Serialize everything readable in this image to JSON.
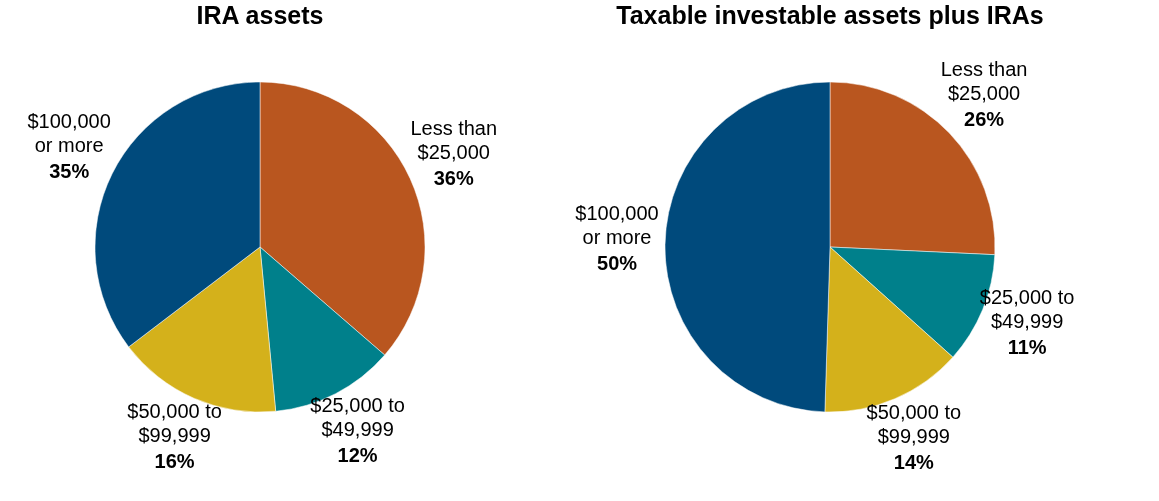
{
  "chart_data": [
    {
      "type": "pie",
      "title": "IRA assets",
      "categories": [
        "Less than $25,000",
        "$25,000 to $49,999",
        "$50,000 to $99,999",
        "$100,000 or more"
      ],
      "values": [
        36,
        12,
        16,
        35
      ],
      "value_labels": [
        "36%",
        "12%",
        "16%",
        "35%"
      ],
      "colors": [
        "#b9561f",
        "#00808b",
        "#d4b11b",
        "#004a7c"
      ],
      "legend": false
    },
    {
      "type": "pie",
      "title": "Taxable investable assets plus IRAs",
      "categories": [
        "Less than $25,000",
        "$25,000 to $49,999",
        "$50,000 to $99,999",
        "$100,000 or more"
      ],
      "values": [
        26,
        11,
        14,
        50
      ],
      "value_labels": [
        "26%",
        "11%",
        "14%",
        "50%"
      ],
      "colors": [
        "#b9561f",
        "#00808b",
        "#d4b11b",
        "#004a7c"
      ],
      "legend": false
    }
  ]
}
